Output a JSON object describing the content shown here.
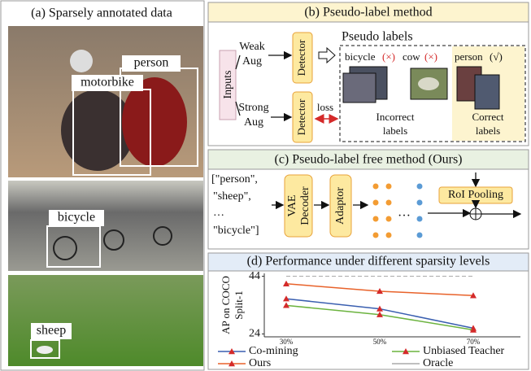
{
  "panel_a": {
    "title": "(a) Sparsely annotated data",
    "labels": [
      "person",
      "motorbike",
      "bicycle",
      "sheep"
    ]
  },
  "panel_b": {
    "title": "(b) Pseudo-label method",
    "inputs": "Inputs",
    "weak_aug": [
      "Weak",
      "Aug"
    ],
    "strong_aug": [
      "Strong",
      "Aug"
    ],
    "detector": "Detector",
    "pseudo_labels": "Pseudo labels",
    "loss": "loss",
    "bicycle": "bicycle",
    "bicycle_mark": "(×)",
    "cow": "cow",
    "cow_mark": "(×)",
    "person": "person",
    "person_mark": "(√)",
    "incorrect": [
      "Incorrect",
      "labels"
    ],
    "correct": [
      "Correct",
      "labels"
    ]
  },
  "panel_c": {
    "title": "(c) Pseudo-label free method (Ours)",
    "prompts": [
      "[\"person\",",
      "\"sheep\",",
      "…",
      "\"bicycle\"]"
    ],
    "vae": [
      "VAE",
      "Decoder"
    ],
    "adaptor": "Adaptor",
    "dots_ellipsis": "…",
    "roi": "RoI Pooling"
  },
  "chart_data": {
    "type": "line",
    "title": "(d) Performance under different sparsity levels",
    "y_label": [
      "AP on COCO",
      "Split-1"
    ],
    "categories": [
      "30%",
      "50%",
      "70%"
    ],
    "ylim": [
      23,
      45
    ],
    "yticks": [
      24,
      44
    ],
    "marker_color": "#d42a2a",
    "series": [
      {
        "name": "Co-mining",
        "color": "#3a5fb0",
        "values": [
          36.2,
          32.7,
          26.0
        ]
      },
      {
        "name": "Unbiased Teacher",
        "color": "#6cb33f",
        "values": [
          33.9,
          30.7,
          25.4
        ]
      },
      {
        "name": "Ours",
        "color": "#e8622a",
        "values": [
          41.4,
          38.8,
          37.3
        ]
      },
      {
        "name": "Oracle",
        "color": "#aaaaaa",
        "values": [
          44,
          44,
          44
        ],
        "dashed": true
      }
    ]
  }
}
